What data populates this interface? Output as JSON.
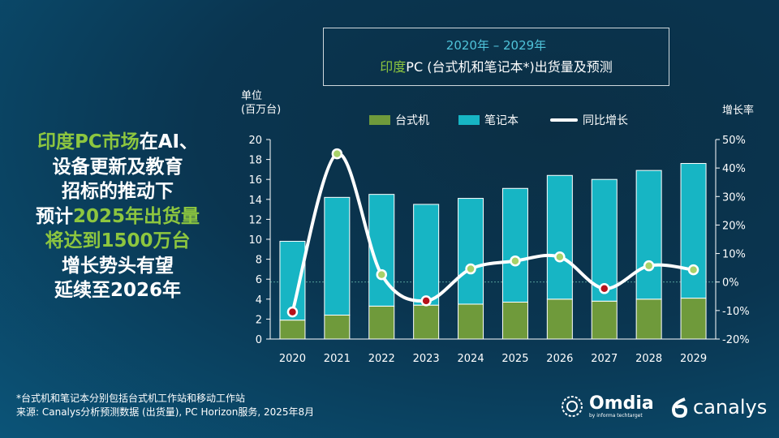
{
  "headline": {
    "lines": [
      [
        {
          "t": "印度PC市场",
          "c": "green"
        },
        {
          "t": "在AI、",
          "c": "white"
        }
      ],
      [
        {
          "t": "设备更新及教育",
          "c": "white"
        }
      ],
      [
        {
          "t": "招标的推动下",
          "c": "white"
        }
      ],
      [
        {
          "t": "预计",
          "c": "white"
        },
        {
          "t": "2025年出货量",
          "c": "green"
        }
      ],
      [
        {
          "t": "将达到1500万台",
          "c": "green"
        }
      ],
      [
        {
          "t": "增长势头有望",
          "c": "white"
        }
      ],
      [
        {
          "t": "延续至2026年",
          "c": "white"
        }
      ]
    ]
  },
  "title": {
    "line1": "2020年 – 2029年",
    "line2_a": "印度",
    "line2_b": "PC (台式机和笔记本*)出货量及预测"
  },
  "footnote": {
    "line1": "*台式机和笔记本分别包括台式机工作站和移动工作站",
    "line2": "来源: Canalys分析预测数据 (出货量), PC Horizon服务, 2025年8月"
  },
  "logos": {
    "omdia": "Omdia",
    "omdia_sub": "by informa techtarget",
    "canalys": "canalys"
  },
  "colors": {
    "desktop": "#6f9a3b",
    "notebook": "#17b5c4",
    "line": "#ffffff",
    "marker_pos": "#a8d26a",
    "marker_neg": "#b5121b",
    "green_text": "#8dc63f"
  },
  "chart_data": {
    "type": "bar",
    "stacked": true,
    "categories": [
      "2020",
      "2021",
      "2022",
      "2023",
      "2024",
      "2025",
      "2026",
      "2027",
      "2028",
      "2029"
    ],
    "ylabel_line1": "单位",
    "ylabel_line2": "(百万台)",
    "y2label": "增长率",
    "ylim": [
      0,
      20
    ],
    "yticks": [
      "0",
      "2",
      "4",
      "6",
      "8",
      "10",
      "12",
      "14",
      "16",
      "18",
      "20"
    ],
    "y2lim": [
      -20,
      50
    ],
    "y2ticks": [
      "-20%",
      "-10%",
      "0%",
      "10%",
      "20%",
      "30%",
      "40%",
      "50%"
    ],
    "series": [
      {
        "name": "台式机",
        "type": "bar",
        "values": [
          1.9,
          2.4,
          3.3,
          3.4,
          3.5,
          3.7,
          4.0,
          3.8,
          4.0,
          4.1
        ]
      },
      {
        "name": "笔记本",
        "type": "bar",
        "values": [
          7.9,
          11.8,
          11.2,
          10.1,
          10.6,
          11.4,
          12.4,
          12.2,
          12.9,
          13.5
        ]
      },
      {
        "name": "同比增长",
        "type": "line",
        "axis": "right",
        "values": [
          -10.5,
          45,
          2.6,
          -6.6,
          4.6,
          7.4,
          8.8,
          -2.3,
          5.7,
          4.3
        ]
      }
    ],
    "legend": "top"
  }
}
